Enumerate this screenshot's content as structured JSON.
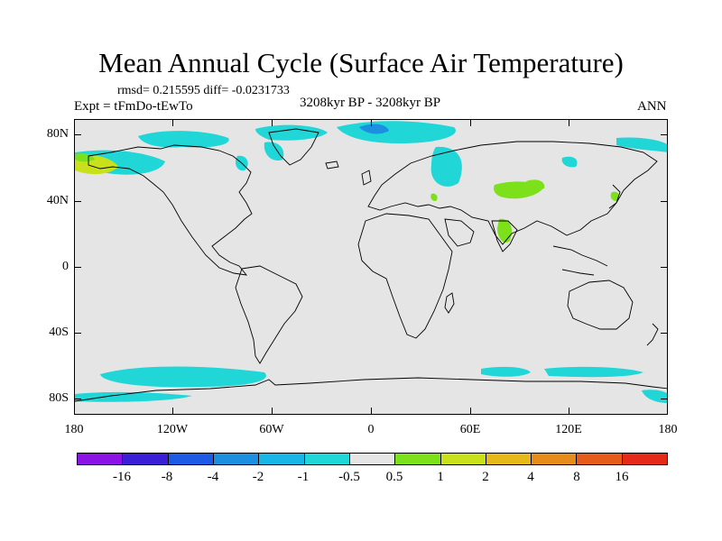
{
  "title": "Mean Annual Cycle (Surface Air Temperature)",
  "stats": "rmsd= 0.215595 diff= -0.0231733",
  "experiment": "Expt = tFmDo-tEwTo",
  "period": "3208kyr BP - 3208kyr BP",
  "season": "ANN",
  "y_axis_labels": [
    "80N",
    "40N",
    "0",
    "40S",
    "80S"
  ],
  "x_axis_labels": [
    "180",
    "120W",
    "60W",
    "0",
    "60E",
    "120E",
    "180"
  ],
  "colorbar": {
    "labels": [
      "-16",
      "-8",
      "-4",
      "-2",
      "-1",
      "-0.5",
      "0.5",
      "1",
      "2",
      "4",
      "8",
      "16"
    ],
    "colors": [
      "#8b13e6",
      "#3a1fd6",
      "#1d5ae6",
      "#1c8fe0",
      "#18b6e6",
      "#20d6d6",
      "#e5e5e5",
      "#7ce11a",
      "#c8e11a",
      "#e6b81a",
      "#e68c1a",
      "#e65a1a",
      "#e62a1a"
    ]
  },
  "map_colors": {
    "land_background": "#e5e5e5",
    "coast": "#000000"
  }
}
